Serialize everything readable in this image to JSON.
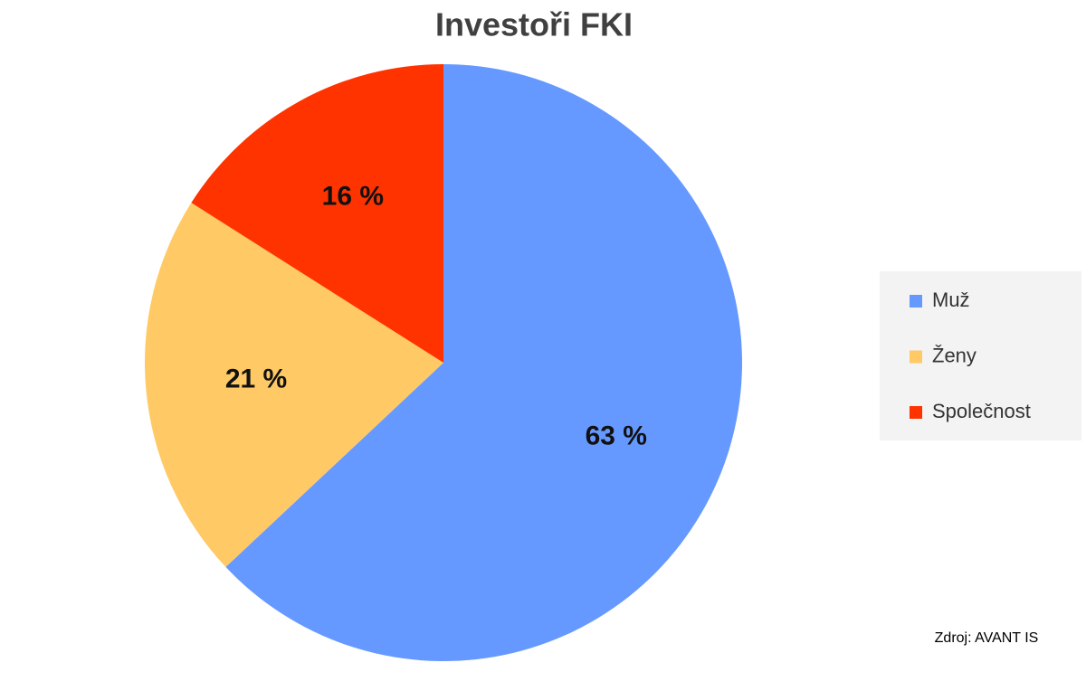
{
  "chart_data": {
    "type": "pie",
    "title": "Investoři FKI",
    "categories": [
      "Muž",
      "Ženy",
      "Společnost"
    ],
    "values": [
      63,
      21,
      16
    ],
    "value_labels": [
      "63 %",
      "21 %",
      "16 %"
    ],
    "colors": [
      "#6699ff",
      "#ffc966",
      "#ff3300"
    ],
    "legend": "right",
    "source": "Zdroj: AVANT IS"
  }
}
